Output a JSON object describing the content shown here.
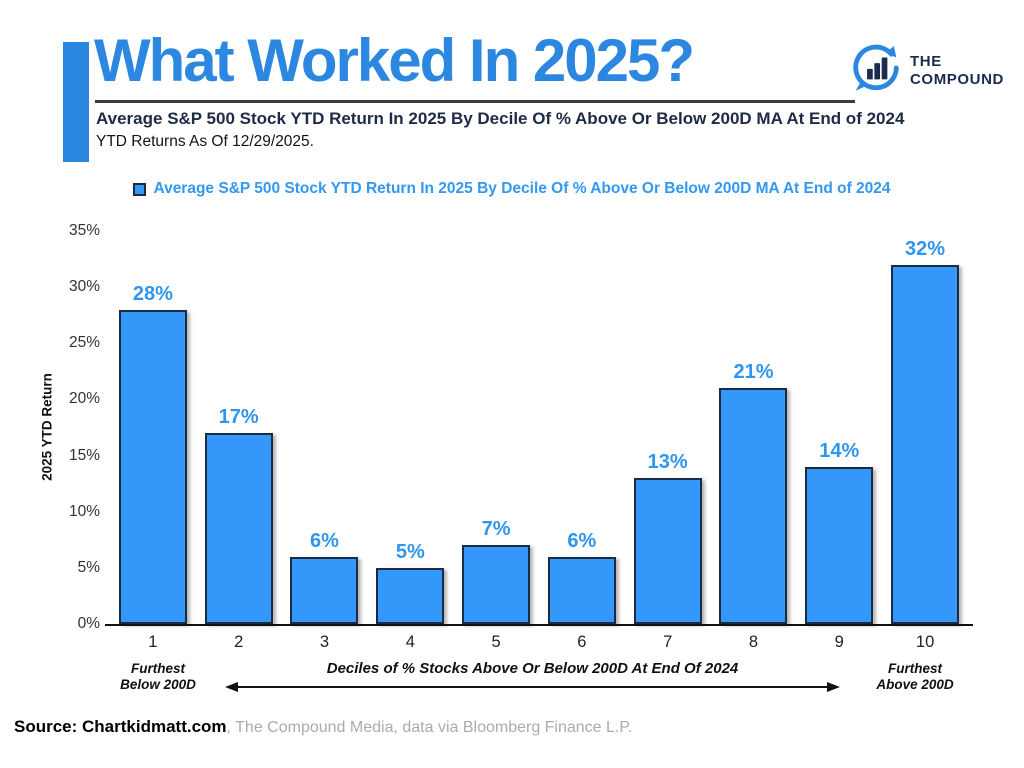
{
  "header": {
    "title": "What Worked In 2025?",
    "accent_color": "#2b87e0",
    "subtitle": "Average S&P 500 Stock YTD Return In 2025 By Decile Of % Above Or Below 200D MA At End of 2024",
    "subtitle_note": "YTD Returns As Of 12/29/2025.",
    "logo": {
      "line1": "THE",
      "line2": "COMPOUND"
    }
  },
  "legend": {
    "label": "Average S&P 500 Stock YTD Return In 2025 By Decile Of % Above Or Below 200D MA At End of 2024",
    "marker_color": "#3398fa"
  },
  "chart_data": {
    "type": "bar",
    "title": "Average S&P 500 Stock YTD Return In 2025 By Decile Of % Above Or Below 200D MA At End of 2024",
    "categories": [
      "1",
      "2",
      "3",
      "4",
      "5",
      "6",
      "7",
      "8",
      "9",
      "10"
    ],
    "values": [
      28,
      17,
      6,
      5,
      7,
      6,
      13,
      21,
      14,
      32
    ],
    "bar_labels": [
      "28%",
      "17%",
      "6%",
      "5%",
      "7%",
      "6%",
      "13%",
      "21%",
      "14%",
      "32%"
    ],
    "ylabel": "2025 YTD Return",
    "xlabel": "Deciles of % Stocks Above Or Below 200D At End Of 2024",
    "ylim": [
      0,
      35
    ],
    "yticks": [
      0,
      5,
      10,
      15,
      20,
      25,
      30,
      35
    ],
    "ytick_suffix": "%",
    "grid": false,
    "legend_position": "top",
    "bar_color": "#3398fa",
    "bar_border_color": "#1c2b44",
    "value_label_color": "#2e96ee",
    "x_annotation_left": [
      "Furthest",
      "Below 200D"
    ],
    "x_annotation_right": [
      "Furthest",
      "Above 200D"
    ]
  },
  "footer": {
    "source_bold": "Source: Chartkidmatt.com",
    "source_rest": ", The Compound Media, data via Bloomberg Finance L.P."
  }
}
